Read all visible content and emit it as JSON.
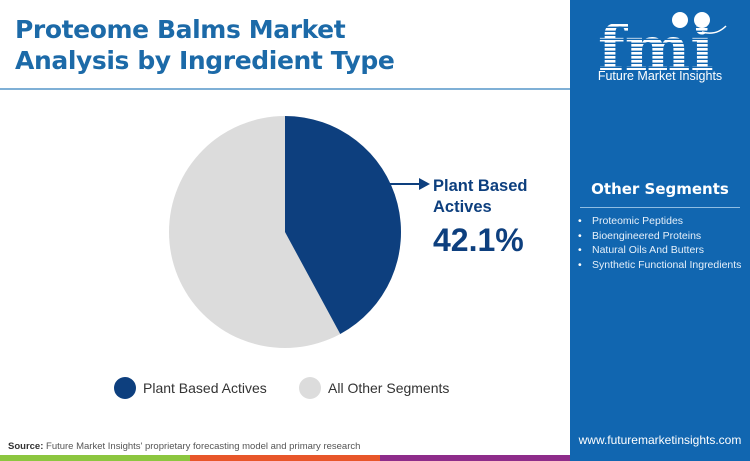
{
  "header": {
    "title_line1": "Proteome Balms Market",
    "title_line2": "Analysis by Ingredient Type"
  },
  "brand": {
    "logo_text": "fmi",
    "logo_subtitle": "Future Market Insights",
    "website": "www.futuremarketinsights.com",
    "panel_color": "#1166b0"
  },
  "other_segments": {
    "title": "Other Segments",
    "items": [
      "Proteomic Peptides",
      "Bioengineered Proteins",
      "Natural Oils And Butters",
      "Synthetic Functional Ingredients"
    ]
  },
  "callout": {
    "label_line1": "Plant Based",
    "label_line2": "Actives",
    "value": "42.1%"
  },
  "legend": {
    "items": [
      {
        "label": "Plant Based Actives",
        "color": "#0d3f7e"
      },
      {
        "label": "All Other Segments",
        "color": "#dcdcdc"
      }
    ]
  },
  "footer": {
    "source_label": "Source:",
    "source_text": " Future Market Insights' proprietary forecasting model and primary research",
    "bar_colors": [
      "#8cc63f",
      "#e8562a",
      "#8e2c8a"
    ]
  },
  "chart_data": {
    "type": "pie",
    "title": "Proteome Balms Market Analysis by Ingredient Type",
    "categories": [
      "Plant Based Actives",
      "All Other Segments"
    ],
    "values": [
      42.1,
      57.9
    ],
    "colors": [
      "#0d3f7e",
      "#dcdcdc"
    ],
    "start_angle": "12 o'clock, clockwise",
    "annotations": [
      {
        "label": "Plant Based Actives",
        "value": "42.1%"
      }
    ],
    "legend_position": "bottom"
  }
}
